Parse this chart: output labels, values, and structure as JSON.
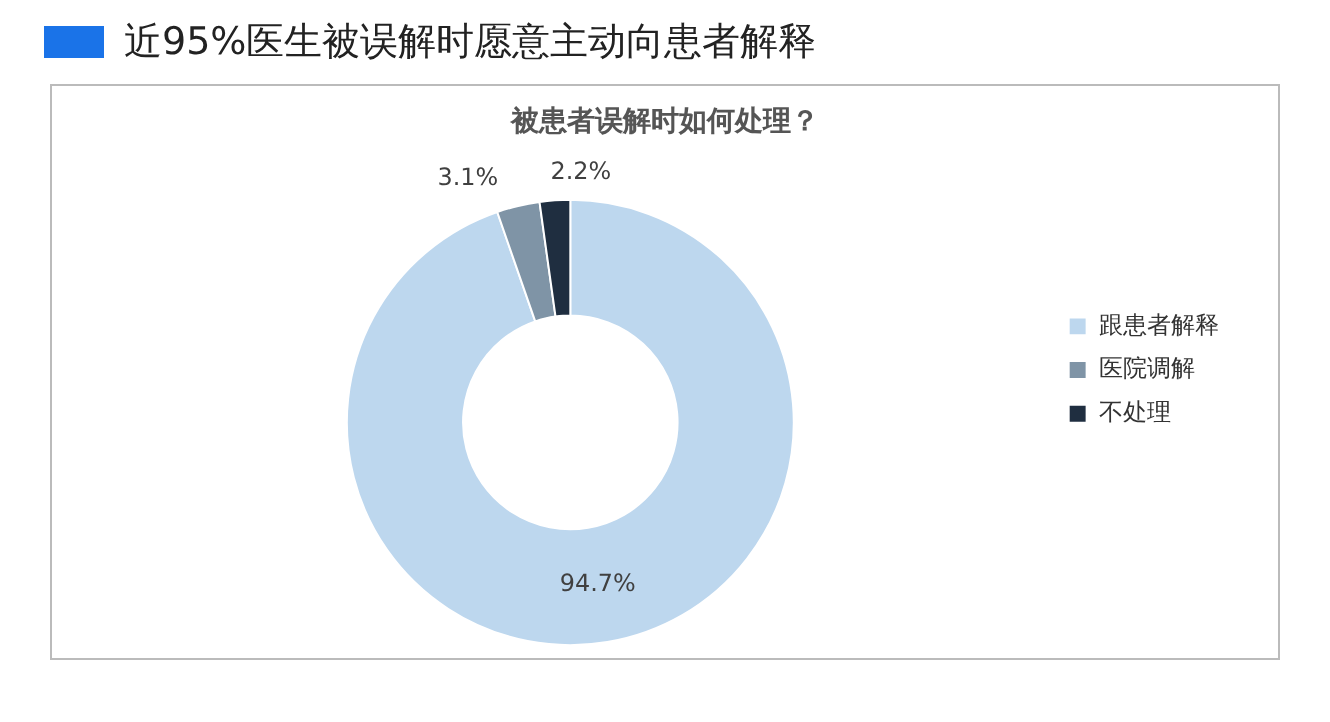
{
  "chart_data": {
    "type": "donut",
    "title": "近95%医生被误解时愿意主动向患者解释",
    "subtitle": "被患者误解时如何处理？",
    "categories": [
      "跟患者解释",
      "医院调解",
      "不处理"
    ],
    "values": [
      94.7,
      3.1,
      2.2
    ],
    "value_labels": [
      "94.7%",
      "3.1%",
      "2.2%"
    ],
    "colors": [
      "#bdd7ee",
      "#7f94a6",
      "#1f2e40"
    ],
    "legend": "right"
  }
}
